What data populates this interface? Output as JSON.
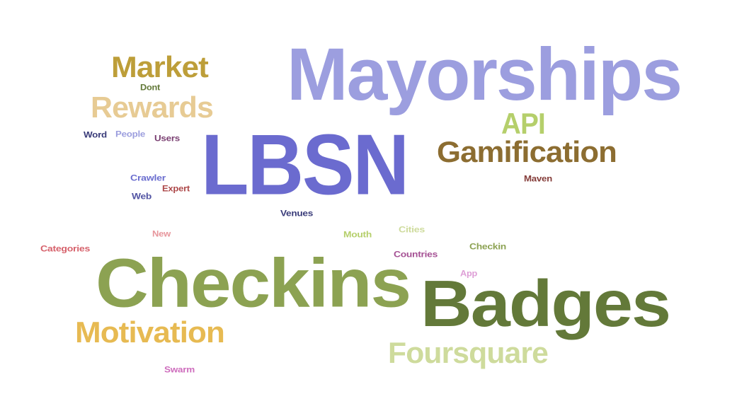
{
  "words": [
    {
      "text": "LBSN",
      "color": "#6b6bcf"
    },
    {
      "text": "Mayorships",
      "color": "#9c9edf"
    },
    {
      "text": "Checkins",
      "color": "#8ca252"
    },
    {
      "text": "Badges",
      "color": "#637939"
    },
    {
      "text": "Gamification",
      "color": "#8c6d31"
    },
    {
      "text": "Market",
      "color": "#bd9e39"
    },
    {
      "text": "Rewards",
      "color": "#e7cb94"
    },
    {
      "text": "Motivation",
      "color": "#e7ba52"
    },
    {
      "text": "Foursquare",
      "color": "#cedb9c"
    },
    {
      "text": "API",
      "color": "#b5cf6b"
    },
    {
      "text": "Dont",
      "color": "#637939"
    },
    {
      "text": "Word",
      "color": "#393b79"
    },
    {
      "text": "People",
      "color": "#9c9ede"
    },
    {
      "text": "Users",
      "color": "#7b4173"
    },
    {
      "text": "Crawler",
      "color": "#6b6ecf"
    },
    {
      "text": "Expert",
      "color": "#ad494a"
    },
    {
      "text": "Web",
      "color": "#5254a3"
    },
    {
      "text": "Maven",
      "color": "#843c39"
    },
    {
      "text": "Venues",
      "color": "#393b79"
    },
    {
      "text": "New",
      "color": "#e7969c"
    },
    {
      "text": "Categories",
      "color": "#d6616b"
    },
    {
      "text": "Mouth",
      "color": "#b5cf6b"
    },
    {
      "text": "Cities",
      "color": "#cedb9c"
    },
    {
      "text": "Countries",
      "color": "#a55194"
    },
    {
      "text": "Checkin",
      "color": "#8ca252"
    },
    {
      "text": "App",
      "color": "#de9ed6"
    },
    {
      "text": "Swarm",
      "color": "#ce6dbd"
    }
  ]
}
